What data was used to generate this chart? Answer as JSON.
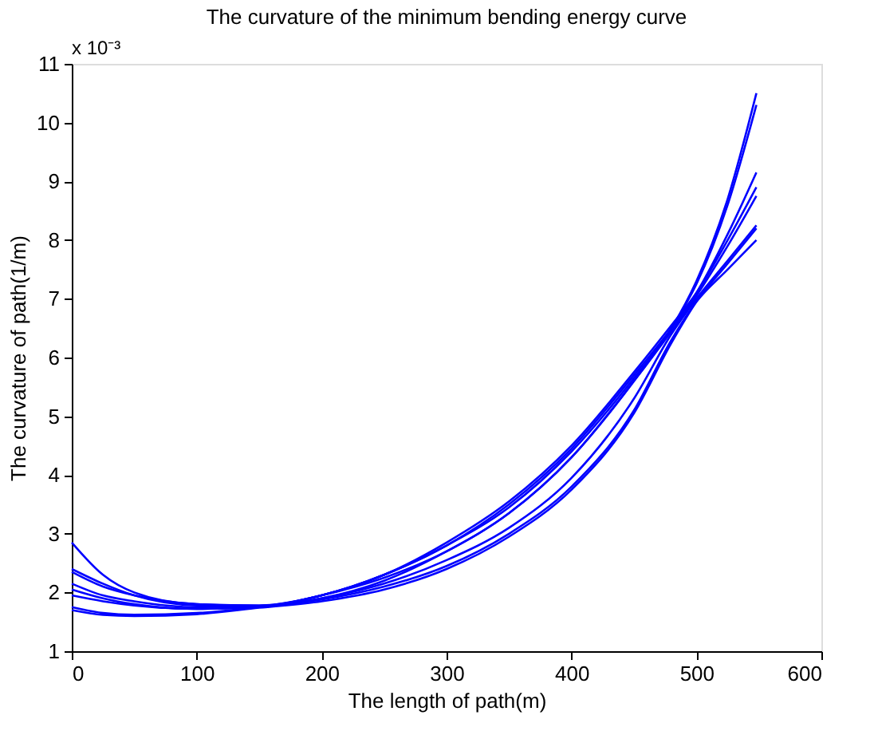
{
  "chart_data": {
    "type": "line",
    "title": "The curvature of the minimum bending energy curve",
    "xlabel": "The length of path(m)",
    "ylabel": "The curvature of path(1/m)",
    "annotations": [
      "x 10⁻³"
    ],
    "x": [
      0,
      25,
      50,
      100,
      150,
      200,
      250,
      300,
      350,
      400,
      450,
      480,
      500,
      525,
      548
    ],
    "xlim": [
      0,
      600
    ],
    "xticks": [
      0,
      100,
      200,
      300,
      400,
      500,
      600
    ],
    "ylim": [
      1,
      11
    ],
    "yticks": [
      1,
      2,
      3,
      4,
      5,
      6,
      7,
      8,
      9,
      10,
      11
    ],
    "grid": false,
    "legend": false,
    "marker": "none",
    "line_style": "solid",
    "series": [
      {
        "color": "#0000ff",
        "values": [
          2.85,
          2.3,
          2.0,
          1.8,
          1.78,
          1.95,
          2.3,
          2.8,
          3.45,
          4.4,
          5.65,
          6.5,
          7.3,
          8.7,
          10.5
        ]
      },
      {
        "color": "#0000ff",
        "values": [
          2.4,
          2.15,
          1.95,
          1.78,
          1.77,
          1.9,
          2.2,
          2.7,
          3.35,
          4.3,
          5.6,
          6.5,
          7.25,
          8.6,
          10.3
        ]
      },
      {
        "color": "#0000ff",
        "values": [
          2.35,
          2.1,
          1.95,
          1.8,
          1.77,
          1.95,
          2.3,
          2.8,
          3.5,
          4.45,
          5.7,
          6.5,
          7.1,
          8.1,
          9.15
        ]
      },
      {
        "color": "#0000ff",
        "values": [
          2.15,
          1.95,
          1.85,
          1.75,
          1.77,
          1.95,
          2.3,
          2.85,
          3.55,
          4.5,
          5.75,
          6.55,
          7.1,
          8.0,
          8.9
        ]
      },
      {
        "color": "#0000ff",
        "values": [
          2.05,
          1.9,
          1.8,
          1.72,
          1.75,
          1.95,
          2.25,
          2.7,
          3.35,
          4.3,
          5.6,
          6.45,
          7.05,
          7.9,
          8.75
        ]
      },
      {
        "color": "#0000ff",
        "values": [
          1.95,
          1.85,
          1.78,
          1.72,
          1.76,
          1.9,
          2.15,
          2.55,
          3.1,
          3.95,
          5.3,
          6.4,
          7.0,
          7.65,
          8.25
        ]
      },
      {
        "color": "#0000ff",
        "values": [
          1.75,
          1.65,
          1.62,
          1.65,
          1.75,
          1.88,
          2.1,
          2.45,
          3.0,
          3.8,
          5.1,
          6.3,
          6.95,
          7.5,
          8.0
        ]
      },
      {
        "color": "#0000ff",
        "values": [
          1.7,
          1.62,
          1.6,
          1.63,
          1.74,
          1.85,
          2.05,
          2.4,
          2.95,
          3.75,
          5.05,
          6.25,
          6.95,
          7.6,
          8.2
        ]
      }
    ]
  }
}
